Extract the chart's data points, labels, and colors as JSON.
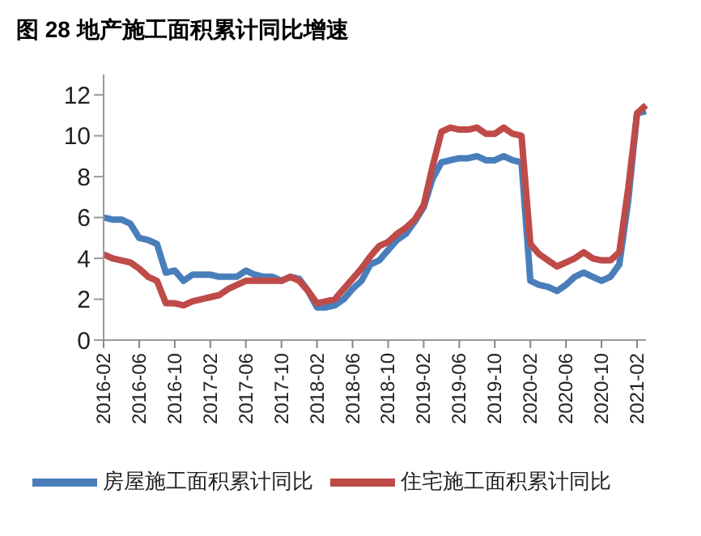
{
  "chart_data": {
    "type": "line",
    "title": "图 28 地产施工面积累计同比增速",
    "categories": [
      "2016-02",
      null,
      null,
      null,
      "2016-06",
      null,
      null,
      null,
      "2016-10",
      null,
      null,
      null,
      "2017-02",
      null,
      null,
      null,
      "2017-06",
      null,
      null,
      null,
      "2017-10",
      null,
      null,
      null,
      "2018-02",
      null,
      null,
      null,
      "2018-06",
      null,
      null,
      null,
      "2018-10",
      null,
      null,
      null,
      "2019-02",
      null,
      null,
      null,
      "2019-06",
      null,
      null,
      null,
      "2019-10",
      null,
      null,
      null,
      "2020-02",
      null,
      null,
      null,
      "2020-06",
      null,
      null,
      null,
      "2020-10",
      null,
      null,
      null,
      "2021-02",
      null
    ],
    "series": [
      {
        "name": "房屋施工面积累计同比",
        "color": "#4a7ebb",
        "values": [
          6.0,
          5.9,
          5.9,
          5.7,
          5.0,
          4.9,
          4.7,
          3.3,
          3.4,
          2.9,
          3.2,
          3.2,
          3.2,
          3.1,
          3.1,
          3.1,
          3.4,
          3.2,
          3.1,
          3.1,
          2.9,
          3.1,
          3.0,
          2.4,
          1.6,
          1.6,
          1.7,
          2.0,
          2.5,
          2.9,
          3.7,
          3.9,
          4.4,
          4.9,
          5.2,
          5.8,
          6.5,
          7.9,
          8.7,
          8.8,
          8.9,
          8.9,
          9.0,
          8.8,
          8.8,
          9.0,
          8.8,
          8.7,
          2.9,
          2.7,
          2.6,
          2.4,
          2.7,
          3.1,
          3.3,
          3.1,
          2.9,
          3.1,
          3.7,
          6.8,
          11.1,
          11.2
        ]
      },
      {
        "name": "住宅施工面积累计同比",
        "color": "#be4b48",
        "values": [
          4.2,
          4.0,
          3.9,
          3.8,
          3.5,
          3.1,
          2.9,
          1.8,
          1.8,
          1.7,
          1.9,
          2.0,
          2.1,
          2.2,
          2.5,
          2.7,
          2.9,
          2.9,
          2.9,
          2.9,
          2.9,
          3.1,
          2.9,
          2.4,
          1.8,
          1.9,
          2.0,
          2.5,
          3.0,
          3.5,
          4.1,
          4.6,
          4.8,
          5.2,
          5.5,
          5.9,
          6.6,
          8.5,
          10.2,
          10.4,
          10.3,
          10.3,
          10.4,
          10.1,
          10.1,
          10.4,
          10.1,
          10.0,
          4.7,
          4.2,
          3.9,
          3.6,
          3.8,
          4.0,
          4.3,
          4.0,
          3.9,
          3.9,
          4.3,
          7.4,
          11.1,
          11.5
        ]
      }
    ],
    "ylim": [
      0,
      13
    ],
    "yticks": [
      0,
      2,
      4,
      6,
      8,
      10,
      12
    ],
    "legend": "bottom",
    "marker": "none",
    "line_style": "solid"
  }
}
